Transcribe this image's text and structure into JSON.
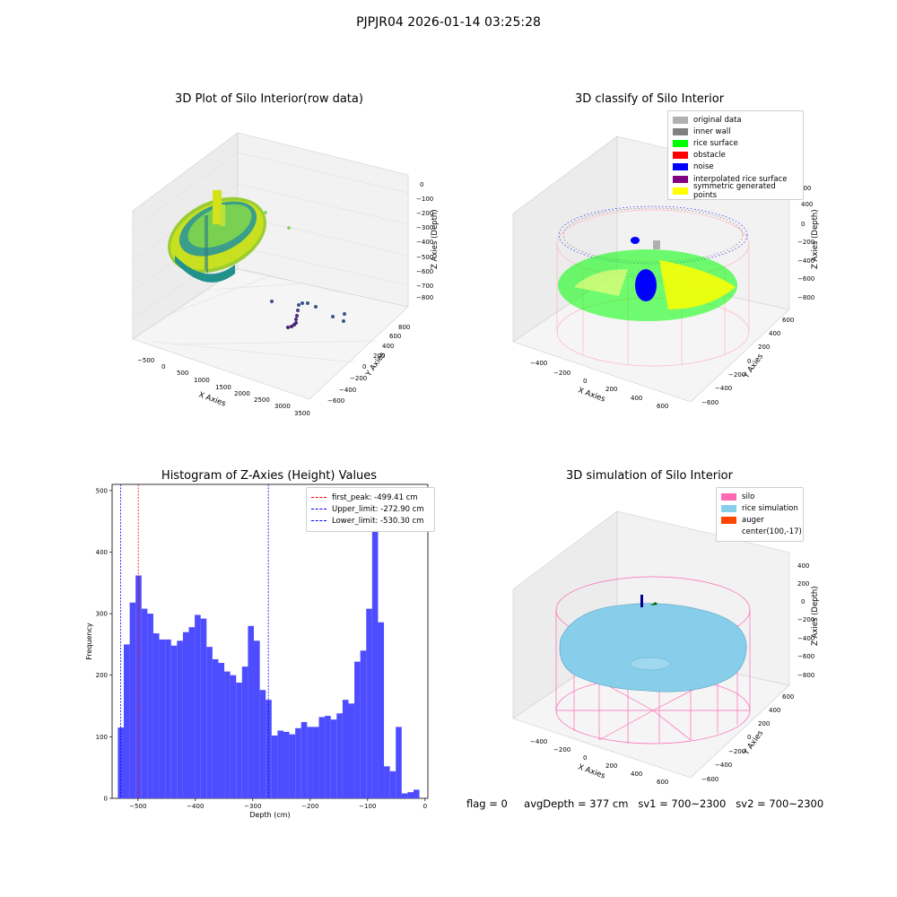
{
  "figure": {
    "suptitle": "PJPJR04 2026-01-14 03:25:28",
    "footer": {
      "flag": "flag = 0",
      "avg": "avgDepth = 377 cm",
      "sv1": "sv1 = 700~2300",
      "sv2": "sv2 = 700~2300"
    }
  },
  "chart_data": [
    {
      "type": "scatter",
      "projection": "3d",
      "title": "3D Plot of Silo Interior(row data)",
      "xlabel": "X Axies",
      "ylabel": "Y Axies",
      "zlabel": "Z Axies (Depth)",
      "x_ticks": [
        "−500",
        "0",
        "500",
        "1000",
        "1500",
        "2000",
        "2500",
        "3000",
        "3500"
      ],
      "y_ticks": [
        "−600",
        "−400",
        "−200",
        "0",
        "200",
        "400",
        "600",
        "800"
      ],
      "z_ticks": [
        "0",
        "−100",
        "−200",
        "−300",
        "−400",
        "−500",
        "−600",
        "−700",
        "−800"
      ],
      "xlim": [
        -600,
        3500
      ],
      "ylim": [
        -650,
        850
      ],
      "zlim": [
        -850,
        0
      ],
      "colormap": "viridis",
      "description_points": "dense ring of points near x≈0, plus sparse outliers near x≈2000–2800, z≈-700"
    },
    {
      "type": "scatter",
      "projection": "3d",
      "title": "3D classify of Silo Interior",
      "xlabel": "X Axies",
      "ylabel": "Y Axies",
      "zlabel": "Z Axies (Depth)",
      "x_ticks": [
        "−400",
        "−200",
        "0",
        "200",
        "400",
        "600"
      ],
      "y_ticks": [
        "−600",
        "−400",
        "−200",
        "0",
        "200",
        "400",
        "600"
      ],
      "z_ticks": [
        "800",
        "400",
        "200",
        "0",
        "−200",
        "−400",
        "−600",
        "−800"
      ],
      "legend": [
        {
          "label": "original data",
          "color": "#b0b0b0"
        },
        {
          "label": "inner wall",
          "color": "#808080"
        },
        {
          "label": "rice surface",
          "color": "#00ff00"
        },
        {
          "label": "obstacle",
          "color": "#ff0000"
        },
        {
          "label": "noise",
          "color": "#0000ff"
        },
        {
          "label": "interpolated rice surface",
          "color": "#800080"
        },
        {
          "label": "symmetric generated points",
          "color": "#ffff00"
        }
      ]
    },
    {
      "type": "bar",
      "subtype": "histogram",
      "title": "Histogram of Z-Axies (Height) Values",
      "xlabel": "Depth (cm)",
      "ylabel": "Frequency",
      "xlim": [
        -545,
        5
      ],
      "ylim": [
        0,
        510
      ],
      "x_ticks": [
        -500,
        -400,
        -300,
        -200,
        -100,
        0
      ],
      "y_ticks": [
        0,
        100,
        200,
        300,
        400,
        500
      ],
      "bar_color": "#4d4dff",
      "bin_start": -535,
      "bin_width": 10.3,
      "values": [
        115,
        250,
        318,
        362,
        308,
        300,
        268,
        258,
        258,
        248,
        256,
        270,
        278,
        298,
        292,
        246,
        226,
        220,
        206,
        200,
        188,
        214,
        280,
        256,
        176,
        160,
        102,
        110,
        108,
        104,
        114,
        124,
        116,
        116,
        132,
        134,
        128,
        138,
        160,
        154,
        222,
        240,
        308,
        500,
        286,
        52,
        44,
        116,
        8,
        10,
        14
      ],
      "vlines": [
        {
          "label": "first_peak: -499.41 cm",
          "x": -499.41,
          "color": "#ff0000"
        },
        {
          "label": "Upper_limit: -272.90 cm",
          "x": -272.9,
          "color": "#0000ff"
        },
        {
          "label": "Lower_limit: -530.30 cm",
          "x": -530.3,
          "color": "#0000ff"
        }
      ]
    },
    {
      "type": "scatter",
      "projection": "3d",
      "title": "3D simulation of Silo Interior",
      "xlabel": "X Axies",
      "ylabel": "Y Axies",
      "zlabel": "Z Axies (Depth)",
      "x_ticks": [
        "−400",
        "−200",
        "0",
        "200",
        "400",
        "600"
      ],
      "y_ticks": [
        "−600",
        "−400",
        "−200",
        "0",
        "200",
        "400",
        "600"
      ],
      "z_ticks": [
        "400",
        "200",
        "0",
        "−200",
        "−400",
        "−600",
        "−800"
      ],
      "legend": [
        {
          "label": "silo",
          "color": "#ff69b4"
        },
        {
          "label": "rice simulation",
          "color": "#87ceeb"
        },
        {
          "label": "auger",
          "color": "#ff4500"
        },
        {
          "label": "center(100,-17)",
          "color": null
        }
      ]
    }
  ]
}
